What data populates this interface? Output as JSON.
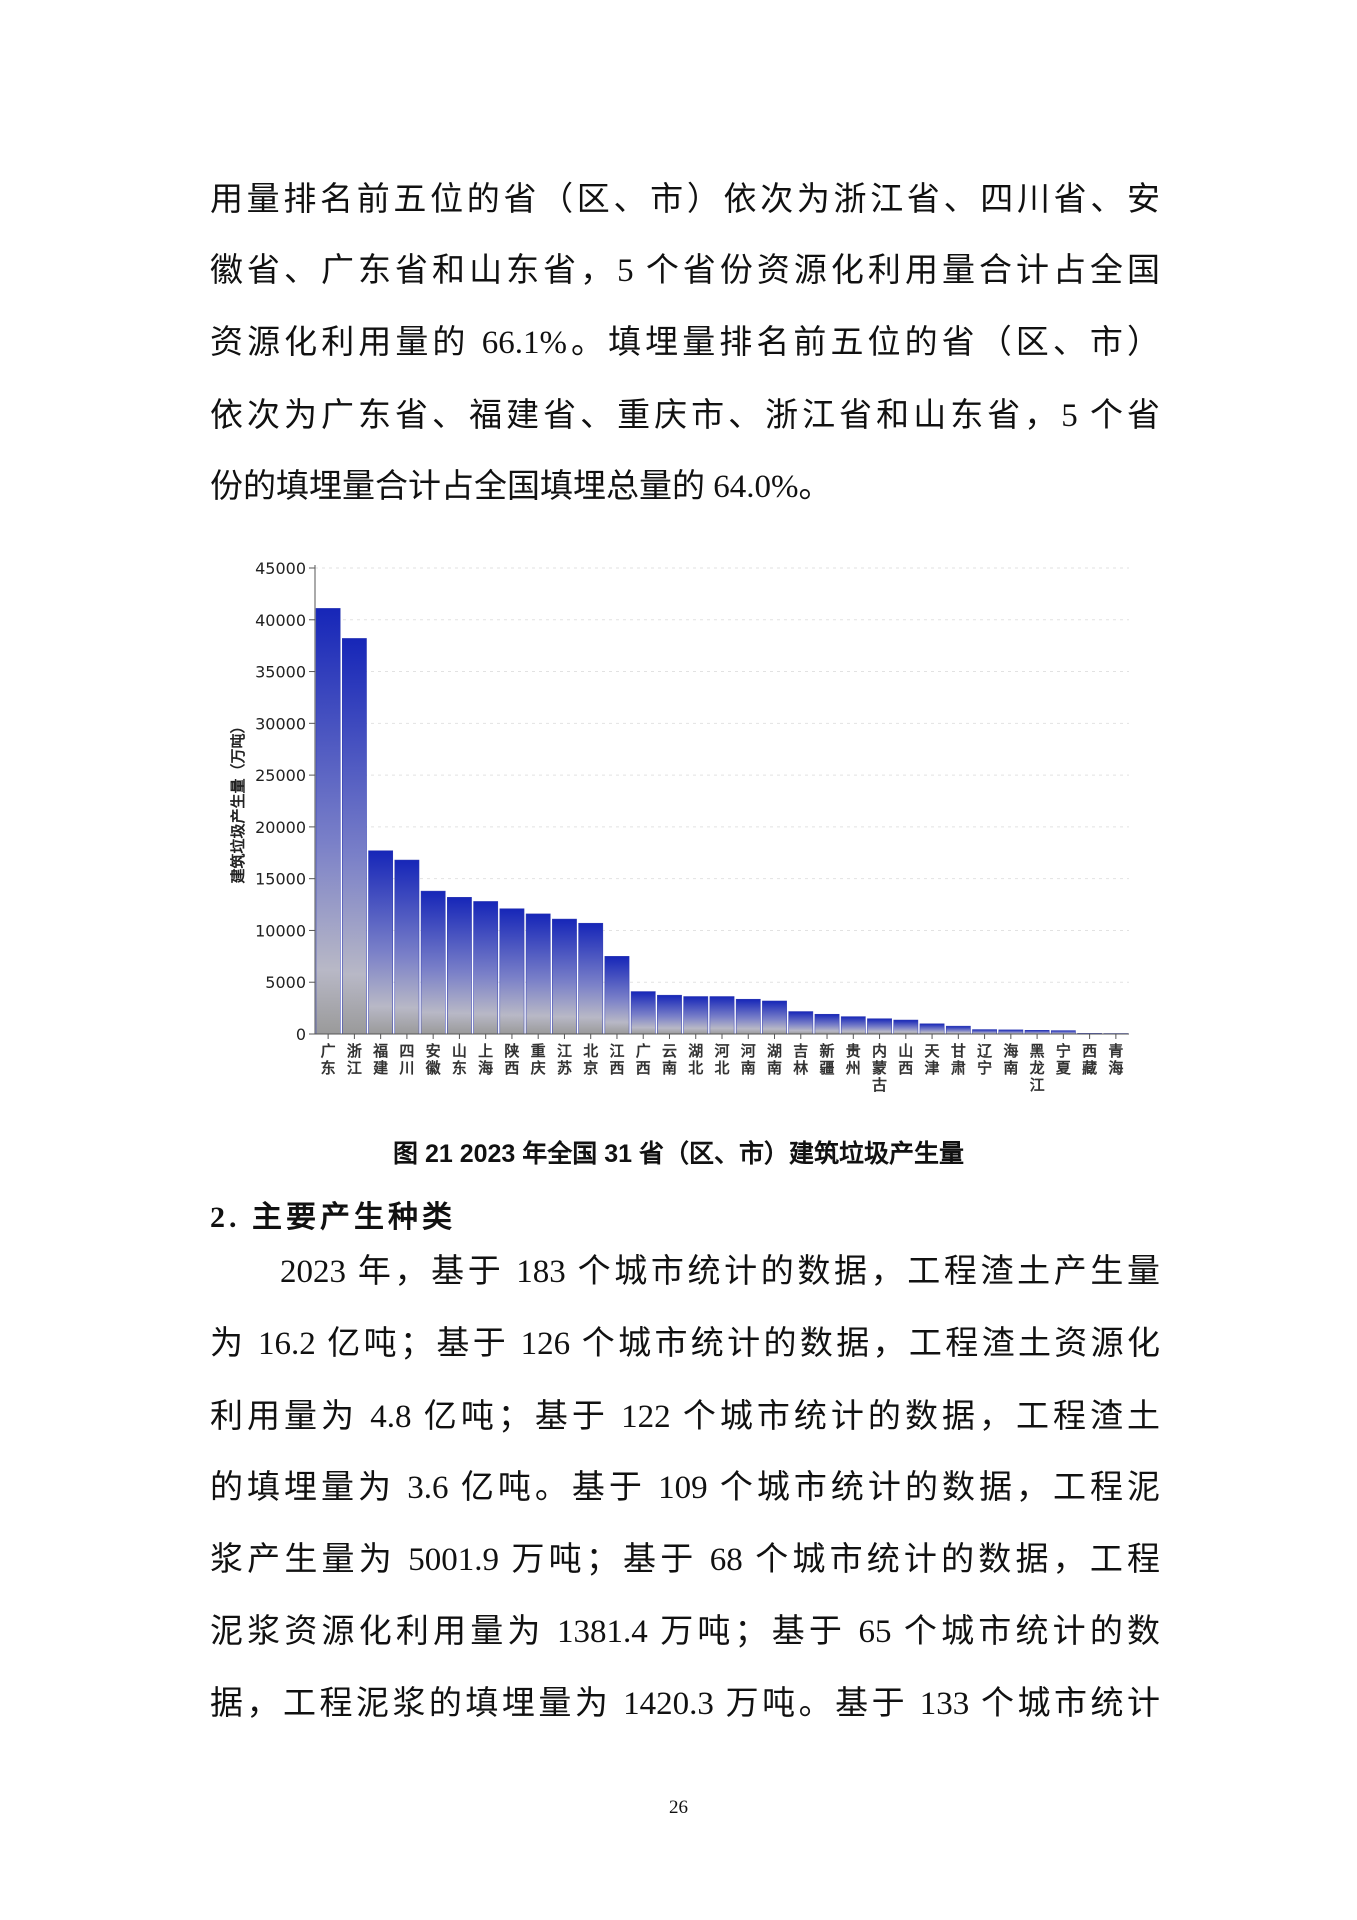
{
  "paragraph1": [
    "用量排名前五位的省（区、市）依次为浙江省、四川省、安",
    "徽省、广东省和山东省，5 个省份资源化利用量合计占全国",
    "资源化利用量的 66.1%。填埋量排名前五位的省（区、市）",
    "依次为广东省、福建省、重庆市、浙江省和山东省，5 个省",
    "份的填埋量合计占全国填埋总量的 64.0%。"
  ],
  "caption": "图  21 2023 年全国 31 省（区、市）建筑垃圾产生量",
  "heading": "2.  主要产生种类",
  "paragraph2": [
    "2023 年，基于 183 个城市统计的数据，工程渣土产生量",
    "为 16.2 亿吨；基于 126 个城市统计的数据，工程渣土资源化",
    "利用量为 4.8 亿吨；基于 122 个城市统计的数据，工程渣土",
    "的填埋量为 3.6 亿吨。基于 109 个城市统计的数据，工程泥",
    "浆产生量为 5001.9 万吨；基于 68 个城市统计的数据，工程",
    "泥浆资源化利用量为 1381.4 万吨；基于 65 个城市统计的数",
    "据，工程泥浆的填埋量为 1420.3 万吨。基于 133 个城市统计"
  ],
  "page_number": "26",
  "chart_data": {
    "type": "bar",
    "title": "",
    "xlabel": "",
    "ylabel": "建筑垃圾产生量（万吨）",
    "ylim": [
      0,
      45000
    ],
    "yticks": [
      "0",
      "5000",
      "10000",
      "15000",
      "20000",
      "25000",
      "30000",
      "35000",
      "40000",
      "45000"
    ],
    "grid": true,
    "categories": [
      "广东",
      "浙江",
      "福建",
      "四川",
      "安徽",
      "山东",
      "上海",
      "陕西",
      "重庆",
      "江苏",
      "北京",
      "江西",
      "广西",
      "云南",
      "湖北",
      "河北",
      "河南",
      "湖南",
      "吉林",
      "新疆",
      "贵州",
      "内蒙古",
      "山西",
      "天津",
      "甘肃",
      "辽宁",
      "海南",
      "黑龙江",
      "宁夏",
      "西藏",
      "青海"
    ],
    "values": [
      41100,
      38200,
      17700,
      16800,
      13800,
      13200,
      12800,
      12100,
      11600,
      11100,
      10700,
      7500,
      4100,
      3750,
      3620,
      3620,
      3360,
      3190,
      2170,
      1910,
      1680,
      1480,
      1350,
      990,
      760,
      430,
      400,
      360,
      330,
      60,
      50
    ],
    "colors": {
      "bar_top": "#1626b8",
      "bar_mid": "#b8b8c6",
      "bar_base": "#9a9a9a"
    }
  }
}
